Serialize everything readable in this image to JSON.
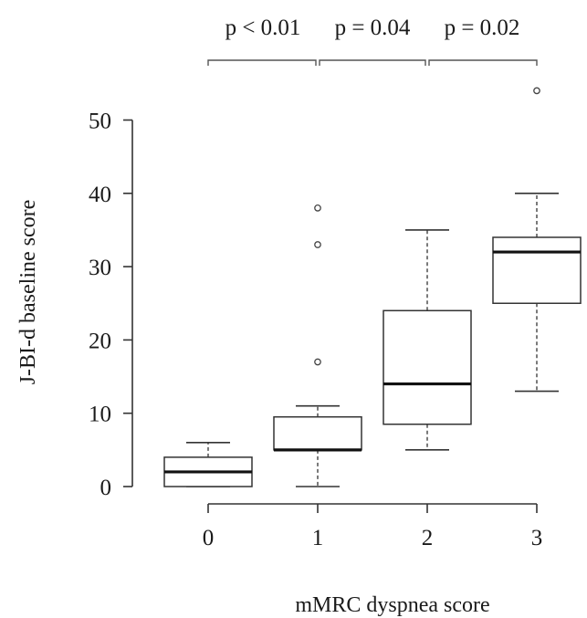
{
  "chart_data": {
    "type": "box",
    "xlabel": "mMRC dyspnea score",
    "ylabel": "J-BI-d baseline score",
    "categories": [
      "0",
      "1",
      "2",
      "3"
    ],
    "ylim": [
      0,
      50
    ],
    "yticks": [
      "0",
      "10",
      "20",
      "30",
      "40",
      "50"
    ],
    "grid": false,
    "boxes": [
      {
        "category": "0",
        "lower_whisker": 0,
        "q1": 0,
        "median": 2,
        "q3": 4,
        "upper_whisker": 6,
        "outliers": []
      },
      {
        "category": "1",
        "lower_whisker": 0,
        "q1": 5,
        "median": 5,
        "q3": 9.5,
        "upper_whisker": 11,
        "outliers": [
          17,
          33,
          38
        ]
      },
      {
        "category": "2",
        "lower_whisker": 5,
        "q1": 8.5,
        "median": 14,
        "q3": 24,
        "upper_whisker": 35,
        "outliers": []
      },
      {
        "category": "3",
        "lower_whisker": 13,
        "q1": 25,
        "median": 32,
        "q3": 34,
        "upper_whisker": 40,
        "outliers": [
          54
        ]
      }
    ],
    "annotations": [
      {
        "text": "p < 0.01",
        "from": "0",
        "to": "1"
      },
      {
        "text": "p = 0.04",
        "from": "1",
        "to": "2"
      },
      {
        "text": "p = 0.02",
        "from": "2",
        "to": "3"
      }
    ]
  }
}
